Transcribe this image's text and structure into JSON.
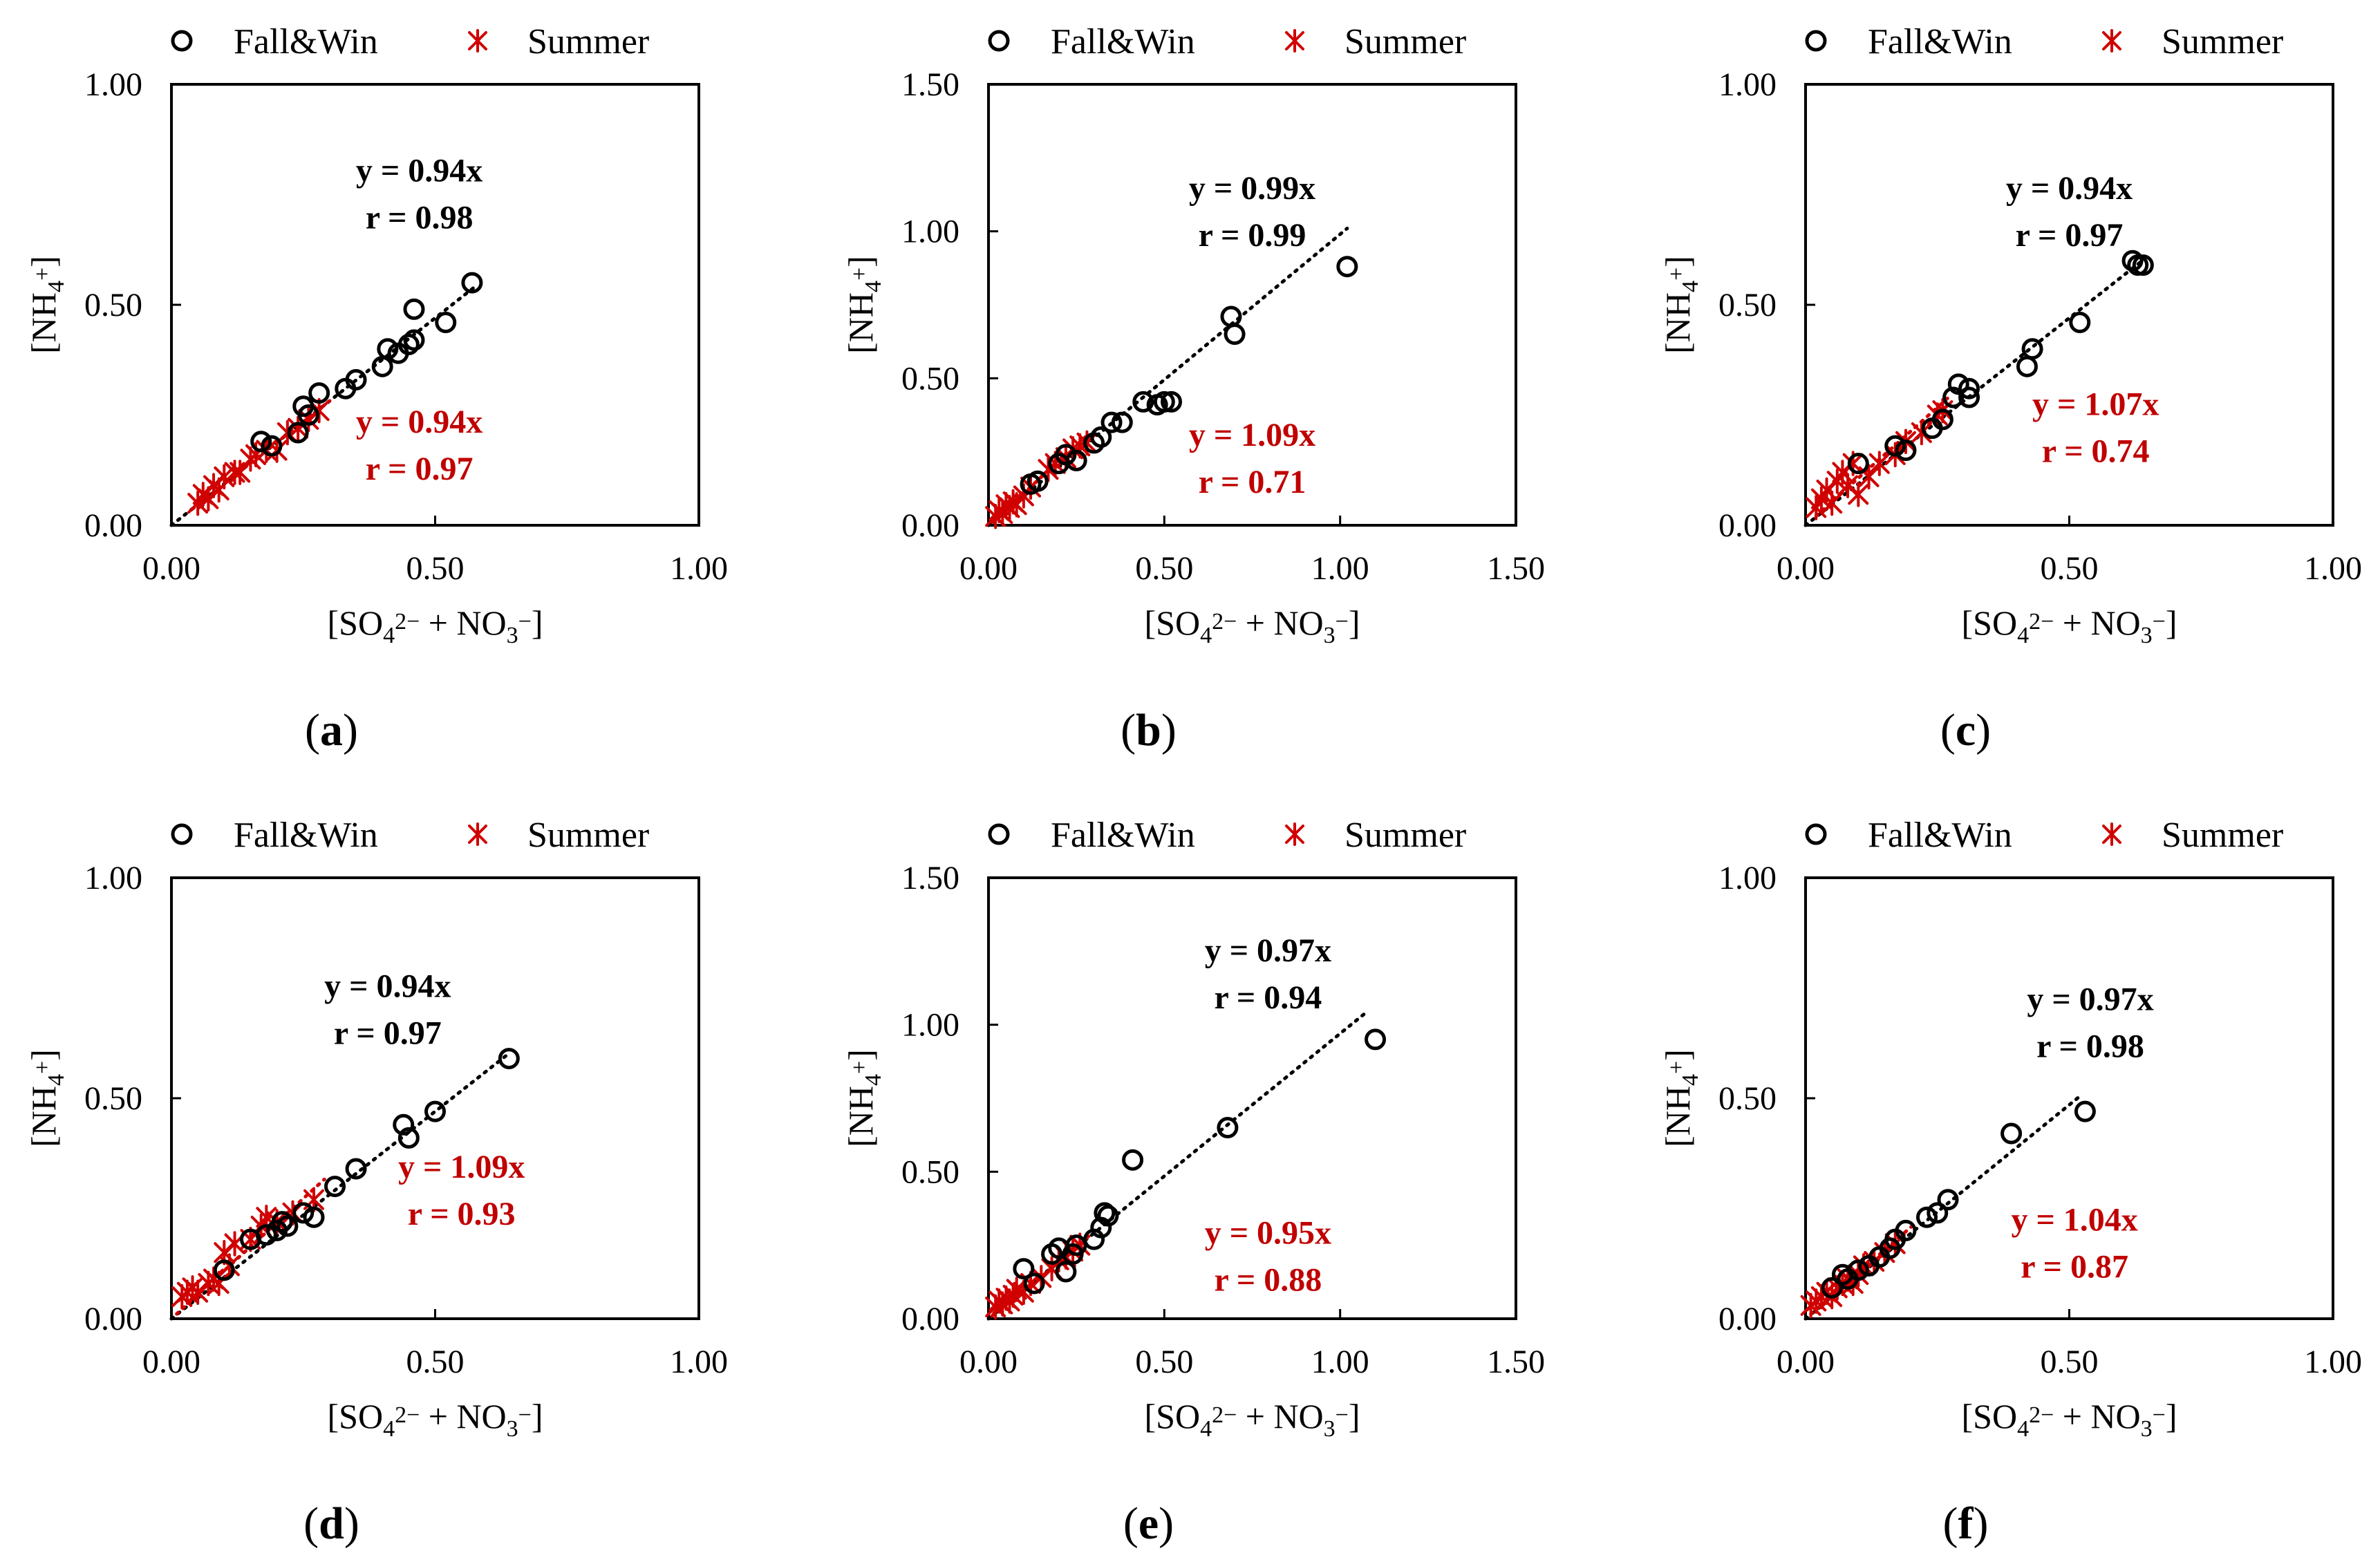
{
  "colors": {
    "fallwin": "#000000",
    "summer": "#d00000",
    "frame": "#000000"
  },
  "icons": {
    "fallwin_marker": "circle-marker-icon",
    "summer_marker": "asterisk-marker-icon"
  },
  "chart_data": [
    {
      "panel": "a",
      "caption_letter": "a",
      "type": "scatter",
      "xlabel": "[SO4 2− + NO3 −]",
      "ylabel": "[NH4 +]",
      "xlim": [
        0,
        1.0
      ],
      "ylim": [
        0,
        1.0
      ],
      "xticks": [
        "0.00",
        "0.50",
        "1.00"
      ],
      "yticks": [
        "0.00",
        "0.50",
        "1.00"
      ],
      "legend": [
        "Fall&Win",
        "Summer"
      ],
      "fallwin": {
        "eq": "y = 0.94x",
        "r": "r = 0.98",
        "slope": 0.94,
        "trend_x": [
          0,
          0.58
        ],
        "points": [
          [
            0.17,
            0.19
          ],
          [
            0.19,
            0.18
          ],
          [
            0.24,
            0.21
          ],
          [
            0.25,
            0.27
          ],
          [
            0.26,
            0.25
          ],
          [
            0.28,
            0.3
          ],
          [
            0.33,
            0.31
          ],
          [
            0.35,
            0.33
          ],
          [
            0.4,
            0.36
          ],
          [
            0.41,
            0.4
          ],
          [
            0.43,
            0.39
          ],
          [
            0.45,
            0.41
          ],
          [
            0.46,
            0.42
          ],
          [
            0.46,
            0.49
          ],
          [
            0.52,
            0.46
          ],
          [
            0.57,
            0.55
          ]
        ]
      },
      "summer": {
        "eq": "y = 0.94x",
        "r": "r = 0.97",
        "slope": 0.94,
        "trend_x": [
          0.04,
          0.3
        ],
        "points": [
          [
            0.05,
            0.05
          ],
          [
            0.06,
            0.07
          ],
          [
            0.07,
            0.06
          ],
          [
            0.08,
            0.09
          ],
          [
            0.09,
            0.08
          ],
          [
            0.1,
            0.11
          ],
          [
            0.12,
            0.12
          ],
          [
            0.13,
            0.12
          ],
          [
            0.15,
            0.15
          ],
          [
            0.16,
            0.16
          ],
          [
            0.18,
            0.17
          ],
          [
            0.2,
            0.17
          ],
          [
            0.22,
            0.21
          ],
          [
            0.24,
            0.22
          ],
          [
            0.26,
            0.24
          ],
          [
            0.28,
            0.26
          ]
        ]
      }
    },
    {
      "panel": "b",
      "caption_letter": "b",
      "type": "scatter",
      "xlabel": "[SO4 2− + NO3 −]",
      "ylabel": "[NH4 +]",
      "xlim": [
        0,
        1.5
      ],
      "ylim": [
        0,
        1.5
      ],
      "xticks": [
        "0.00",
        "0.50",
        "1.00",
        "1.50"
      ],
      "yticks": [
        "0.00",
        "0.50",
        "1.00",
        "1.50"
      ],
      "legend": [
        "Fall&Win",
        "Summer"
      ],
      "fallwin": {
        "eq": "y = 0.99x",
        "r": "r = 0.99",
        "slope": 0.99,
        "trend_x": [
          0,
          1.02
        ],
        "points": [
          [
            0.12,
            0.14
          ],
          [
            0.14,
            0.15
          ],
          [
            0.2,
            0.21
          ],
          [
            0.22,
            0.24
          ],
          [
            0.25,
            0.22
          ],
          [
            0.3,
            0.28
          ],
          [
            0.32,
            0.3
          ],
          [
            0.35,
            0.35
          ],
          [
            0.38,
            0.35
          ],
          [
            0.44,
            0.42
          ],
          [
            0.48,
            0.41
          ],
          [
            0.5,
            0.42
          ],
          [
            0.52,
            0.42
          ],
          [
            0.69,
            0.71
          ],
          [
            0.7,
            0.65
          ],
          [
            1.02,
            0.88
          ]
        ]
      },
      "summer": {
        "eq": "y = 1.09x",
        "r": "r = 0.71",
        "slope": 1.09,
        "trend_x": [
          0.01,
          0.28
        ],
        "points": [
          [
            0.02,
            0.03
          ],
          [
            0.03,
            0.05
          ],
          [
            0.04,
            0.04
          ],
          [
            0.05,
            0.07
          ],
          [
            0.06,
            0.06
          ],
          [
            0.07,
            0.08
          ],
          [
            0.08,
            0.07
          ],
          [
            0.1,
            0.1
          ],
          [
            0.12,
            0.13
          ],
          [
            0.17,
            0.19
          ],
          [
            0.19,
            0.21
          ],
          [
            0.22,
            0.23
          ],
          [
            0.24,
            0.26
          ],
          [
            0.26,
            0.27
          ],
          [
            0.28,
            0.28
          ]
        ]
      }
    },
    {
      "panel": "c",
      "caption_letter": "c",
      "type": "scatter",
      "xlabel": "[SO4 2− + NO3 −]",
      "ylabel": "[NH4 +]",
      "xlim": [
        0,
        1.0
      ],
      "ylim": [
        0,
        1.0
      ],
      "xticks": [
        "0.00",
        "0.50",
        "1.00"
      ],
      "yticks": [
        "0.00",
        "0.50",
        "1.00"
      ],
      "legend": [
        "Fall&Win",
        "Summer"
      ],
      "fallwin": {
        "eq": "y = 0.94x",
        "r": "r = 0.97",
        "slope": 0.94,
        "trend_x": [
          0,
          0.64
        ],
        "points": [
          [
            0.1,
            0.14
          ],
          [
            0.17,
            0.18
          ],
          [
            0.19,
            0.17
          ],
          [
            0.24,
            0.22
          ],
          [
            0.26,
            0.24
          ],
          [
            0.28,
            0.29
          ],
          [
            0.29,
            0.32
          ],
          [
            0.31,
            0.29
          ],
          [
            0.31,
            0.31
          ],
          [
            0.42,
            0.36
          ],
          [
            0.43,
            0.4
          ],
          [
            0.52,
            0.46
          ],
          [
            0.62,
            0.6
          ],
          [
            0.63,
            0.59
          ],
          [
            0.64,
            0.59
          ]
        ]
      },
      "summer": {
        "eq": "y = 1.07x",
        "r": "r = 0.74",
        "slope": 1.07,
        "trend_x": [
          0.02,
          0.27
        ],
        "points": [
          [
            0.02,
            0.04
          ],
          [
            0.03,
            0.06
          ],
          [
            0.04,
            0.08
          ],
          [
            0.05,
            0.05
          ],
          [
            0.06,
            0.1
          ],
          [
            0.07,
            0.12
          ],
          [
            0.08,
            0.09
          ],
          [
            0.09,
            0.14
          ],
          [
            0.1,
            0.07
          ],
          [
            0.12,
            0.11
          ],
          [
            0.14,
            0.14
          ],
          [
            0.17,
            0.16
          ],
          [
            0.19,
            0.19
          ],
          [
            0.22,
            0.21
          ],
          [
            0.25,
            0.25
          ],
          [
            0.26,
            0.26
          ]
        ]
      }
    },
    {
      "panel": "d",
      "caption_letter": "d",
      "type": "scatter",
      "xlabel": "[SO4 2− + NO3 −]",
      "ylabel": "[NH4 +]",
      "xlim": [
        0,
        1.0
      ],
      "ylim": [
        0,
        1.0
      ],
      "xticks": [
        "0.00",
        "0.50",
        "1.00"
      ],
      "yticks": [
        "0.00",
        "0.50",
        "1.00"
      ],
      "legend": [
        "Fall&Win",
        "Summer"
      ],
      "fallwin": {
        "eq": "y = 0.94x",
        "r": "r = 0.97",
        "slope": 0.94,
        "trend_x": [
          0,
          0.64
        ],
        "points": [
          [
            0.1,
            0.11
          ],
          [
            0.15,
            0.18
          ],
          [
            0.18,
            0.19
          ],
          [
            0.2,
            0.2
          ],
          [
            0.21,
            0.22
          ],
          [
            0.22,
            0.21
          ],
          [
            0.25,
            0.24
          ],
          [
            0.27,
            0.23
          ],
          [
            0.31,
            0.3
          ],
          [
            0.35,
            0.34
          ],
          [
            0.44,
            0.44
          ],
          [
            0.45,
            0.41
          ],
          [
            0.5,
            0.47
          ],
          [
            0.64,
            0.59
          ]
        ]
      },
      "summer": {
        "eq": "y = 1.09x",
        "r": "r = 0.93",
        "slope": 1.09,
        "trend_x": [
          0.01,
          0.29
        ],
        "points": [
          [
            0.02,
            0.05
          ],
          [
            0.03,
            0.06
          ],
          [
            0.04,
            0.07
          ],
          [
            0.05,
            0.06
          ],
          [
            0.07,
            0.08
          ],
          [
            0.08,
            0.09
          ],
          [
            0.09,
            0.08
          ],
          [
            0.1,
            0.15
          ],
          [
            0.11,
            0.12
          ],
          [
            0.12,
            0.17
          ],
          [
            0.15,
            0.18
          ],
          [
            0.17,
            0.21
          ],
          [
            0.18,
            0.23
          ],
          [
            0.2,
            0.22
          ],
          [
            0.23,
            0.24
          ],
          [
            0.27,
            0.27
          ]
        ]
      }
    },
    {
      "panel": "e",
      "caption_letter": "e",
      "type": "scatter",
      "xlabel": "[SO4 2− + NO3 −]",
      "ylabel": "[NH4 +]",
      "xlim": [
        0,
        1.5
      ],
      "ylim": [
        0,
        1.5
      ],
      "xticks": [
        "0.00",
        "0.50",
        "1.00",
        "1.50"
      ],
      "yticks": [
        "0.00",
        "0.50",
        "1.00",
        "1.50"
      ],
      "legend": [
        "Fall&Win",
        "Summer"
      ],
      "fallwin": {
        "eq": "y = 0.97x",
        "r": "r = 0.94",
        "slope": 0.97,
        "trend_x": [
          0,
          1.08
        ],
        "points": [
          [
            0.1,
            0.17
          ],
          [
            0.13,
            0.12
          ],
          [
            0.18,
            0.22
          ],
          [
            0.2,
            0.24
          ],
          [
            0.22,
            0.16
          ],
          [
            0.24,
            0.22
          ],
          [
            0.25,
            0.25
          ],
          [
            0.3,
            0.27
          ],
          [
            0.32,
            0.31
          ],
          [
            0.33,
            0.36
          ],
          [
            0.34,
            0.35
          ],
          [
            0.41,
            0.54
          ],
          [
            0.68,
            0.65
          ],
          [
            1.1,
            0.95
          ]
        ]
      },
      "summer": {
        "eq": "y = 0.95x",
        "r": "r = 0.88",
        "slope": 0.95,
        "trend_x": [
          0.01,
          0.27
        ],
        "points": [
          [
            0.02,
            0.04
          ],
          [
            0.03,
            0.06
          ],
          [
            0.04,
            0.05
          ],
          [
            0.05,
            0.07
          ],
          [
            0.06,
            0.06
          ],
          [
            0.07,
            0.08
          ],
          [
            0.08,
            0.1
          ],
          [
            0.1,
            0.09
          ],
          [
            0.12,
            0.12
          ],
          [
            0.15,
            0.14
          ],
          [
            0.18,
            0.17
          ],
          [
            0.2,
            0.2
          ],
          [
            0.22,
            0.21
          ],
          [
            0.24,
            0.23
          ],
          [
            0.26,
            0.25
          ]
        ]
      }
    },
    {
      "panel": "f",
      "caption_letter": "f",
      "type": "scatter",
      "xlabel": "[SO4 2− + NO3 −]",
      "ylabel": "[NH4 +]",
      "xlim": [
        0,
        1.0
      ],
      "ylim": [
        0,
        1.0
      ],
      "xticks": [
        "0.00",
        "0.50",
        "1.00"
      ],
      "yticks": [
        "0.00",
        "0.50",
        "1.00"
      ],
      "legend": [
        "Fall&Win",
        "Summer"
      ],
      "fallwin": {
        "eq": "y = 0.97x",
        "r": "r = 0.98",
        "slope": 0.97,
        "trend_x": [
          0,
          0.52
        ],
        "points": [
          [
            0.05,
            0.07
          ],
          [
            0.07,
            0.1
          ],
          [
            0.08,
            0.09
          ],
          [
            0.1,
            0.11
          ],
          [
            0.12,
            0.12
          ],
          [
            0.14,
            0.14
          ],
          [
            0.16,
            0.16
          ],
          [
            0.17,
            0.18
          ],
          [
            0.19,
            0.2
          ],
          [
            0.23,
            0.23
          ],
          [
            0.25,
            0.24
          ],
          [
            0.27,
            0.27
          ],
          [
            0.39,
            0.42
          ],
          [
            0.53,
            0.47
          ]
        ]
      },
      "summer": {
        "eq": "y = 1.04x",
        "r": "r = 0.87",
        "slope": 1.04,
        "trend_x": [
          0.01,
          0.2
        ],
        "points": [
          [
            0.01,
            0.03
          ],
          [
            0.02,
            0.04
          ],
          [
            0.03,
            0.05
          ],
          [
            0.04,
            0.06
          ],
          [
            0.05,
            0.05
          ],
          [
            0.06,
            0.07
          ],
          [
            0.07,
            0.08
          ],
          [
            0.08,
            0.09
          ],
          [
            0.09,
            0.08
          ],
          [
            0.1,
            0.1
          ],
          [
            0.11,
            0.12
          ],
          [
            0.13,
            0.13
          ],
          [
            0.15,
            0.15
          ],
          [
            0.17,
            0.17
          ]
        ]
      }
    }
  ]
}
